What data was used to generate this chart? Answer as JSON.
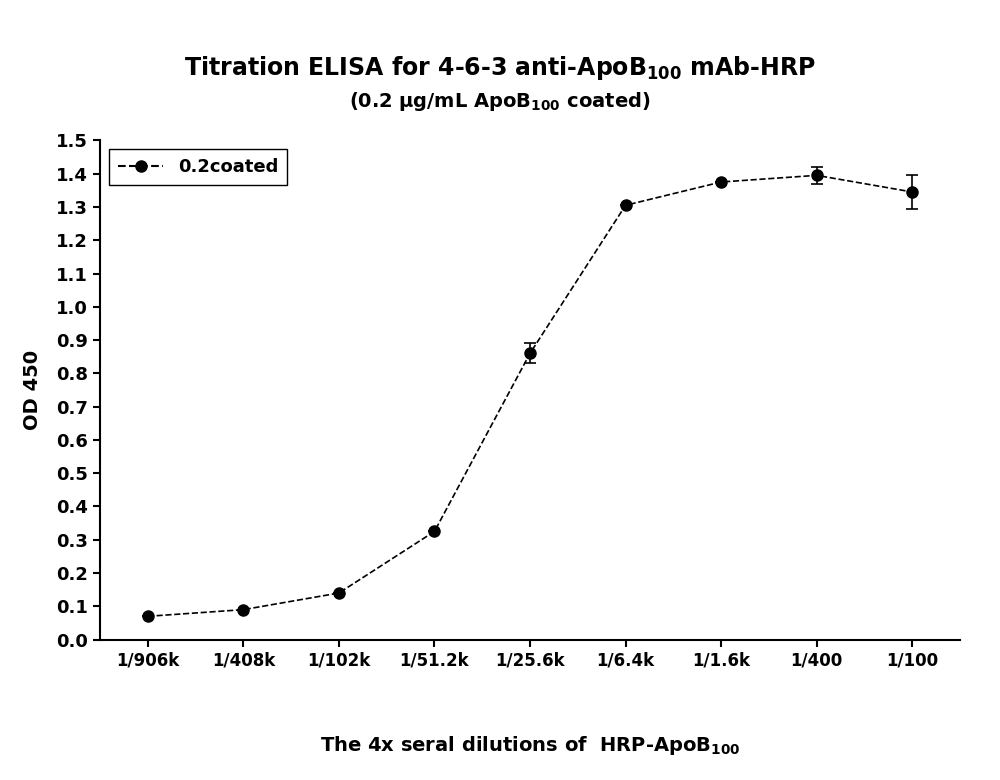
{
  "ylabel": "OD 450",
  "x_positions": [
    1,
    2,
    3,
    4,
    5,
    6,
    7,
    8,
    9
  ],
  "x_labels": [
    "1/906k",
    "1/408k",
    "1/102k",
    "1/51.2k",
    "1/25.6k",
    "1/6.4k",
    "1/1.6k",
    "1/400",
    "1/100"
  ],
  "y_values": [
    0.07,
    0.09,
    0.14,
    0.325,
    0.86,
    1.305,
    1.375,
    1.395,
    1.345
  ],
  "y_errors": [
    0.0,
    0.0,
    0.0,
    0.0,
    0.03,
    0.0,
    0.0,
    0.025,
    0.05
  ],
  "legend_label": "0.2coated",
  "ylim": [
    0.0,
    1.5
  ],
  "yticks": [
    0.0,
    0.1,
    0.2,
    0.3,
    0.4,
    0.5,
    0.6,
    0.7,
    0.8,
    0.9,
    1.0,
    1.1,
    1.2,
    1.3,
    1.4,
    1.5
  ],
  "line_color": "#000000",
  "marker_color": "#000000",
  "background_color": "#ffffff"
}
